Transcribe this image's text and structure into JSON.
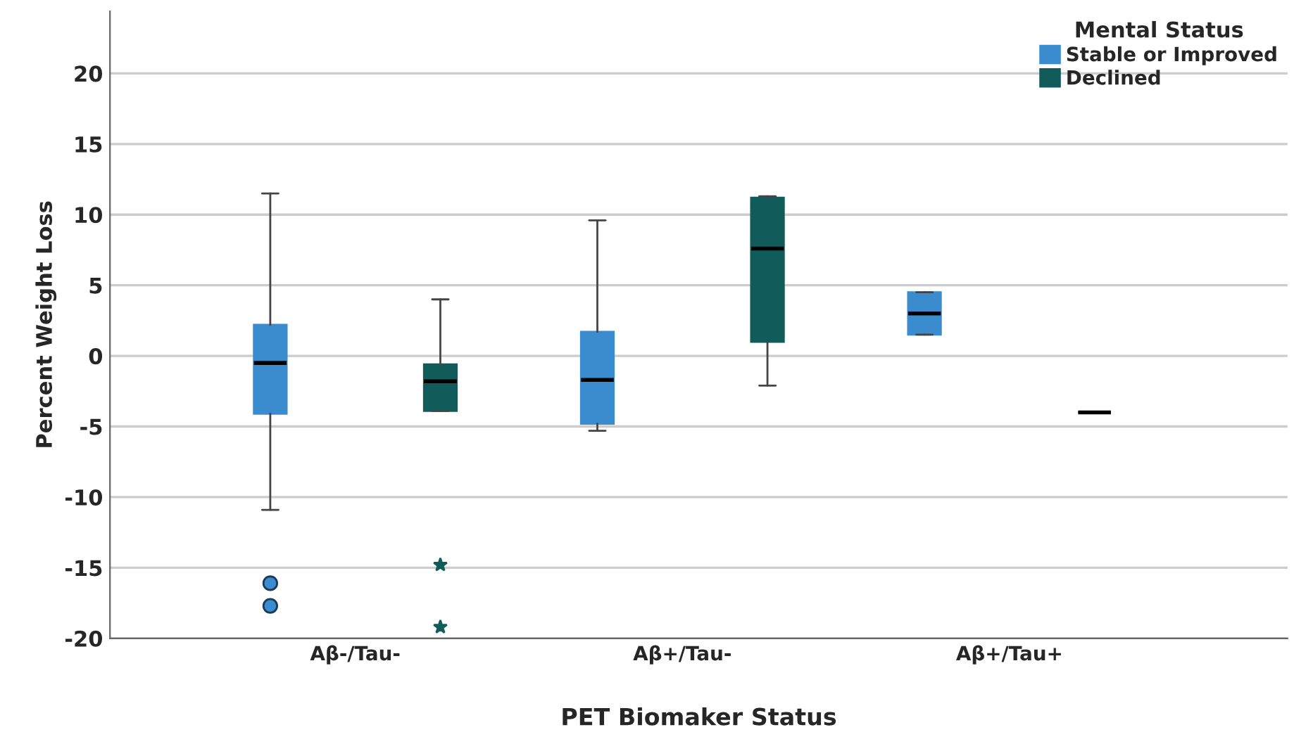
{
  "chart_data": {
    "type": "box",
    "xlabel": "PET Biomaker Status",
    "ylabel": "Percent Weight Loss",
    "legend_title": "Mental Status",
    "categories": [
      "Aβ-/Tau-",
      "Aβ+/Tau-",
      "Aβ+/Tau+"
    ],
    "series": [
      {
        "name": "Stable or Improved",
        "color": "#3a8ccf",
        "marker": "circle",
        "boxes": [
          {
            "low": -10.9,
            "q1": -4.1,
            "median": -0.5,
            "q3": 2.2,
            "high": 11.5,
            "outliers": [
              -16.1,
              -17.7
            ]
          },
          {
            "low": -5.3,
            "q1": -4.8,
            "median": -1.7,
            "q3": 1.7,
            "high": 9.6
          },
          {
            "low": 1.5,
            "q1": 1.5,
            "median": 3.0,
            "q3": 4.5,
            "high": 4.5
          }
        ]
      },
      {
        "name": "Declined",
        "color": "#115c5a",
        "marker": "star",
        "boxes": [
          {
            "low": -3.9,
            "q1": -3.9,
            "median": -1.8,
            "q3": -0.6,
            "high": 4.0,
            "outliers": [
              -14.8,
              -19.2
            ]
          },
          {
            "low": -2.1,
            "q1": 1.0,
            "median": 7.6,
            "q3": 11.2,
            "high": 11.3
          },
          {
            "low": -4.0,
            "q1": -4.0,
            "median": -4.0,
            "q3": -4.0,
            "high": -4.0
          }
        ]
      }
    ],
    "ylim": [
      -20,
      24.4
    ],
    "yticks": [
      -20,
      -15,
      -10,
      -5,
      0,
      5,
      10,
      15,
      20
    ],
    "grid": "y",
    "legend": "top right"
  }
}
